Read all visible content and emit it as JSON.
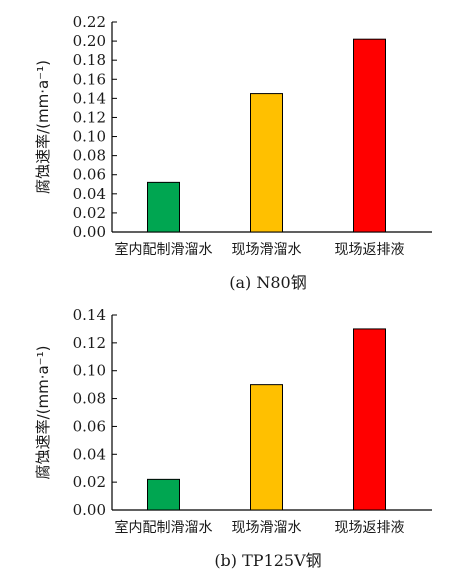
{
  "chart_data": [
    {
      "type": "bar",
      "caption": "(a) N80钢",
      "ylabel": "腐蚀速率/(mm·a⁻¹)",
      "categories": [
        "室内配制滑溜水",
        "现场滑溜水",
        "现场返排液"
      ],
      "values": [
        0.052,
        0.145,
        0.202
      ],
      "colors": [
        "#00a651",
        "#ffc000",
        "#ff0000"
      ],
      "ylim": [
        0,
        0.22
      ],
      "yticks": [
        "0.00",
        "0.02",
        "0.04",
        "0.06",
        "0.08",
        "0.10",
        "0.12",
        "0.14",
        "0.16",
        "0.18",
        "0.20",
        "0.22"
      ],
      "grid": false
    },
    {
      "type": "bar",
      "caption": "(b) TP125V钢",
      "ylabel": "腐蚀速率/(mm·a⁻¹)",
      "categories": [
        "室内配制滑溜水",
        "现场滑溜水",
        "现场返排液"
      ],
      "values": [
        0.022,
        0.09,
        0.13
      ],
      "colors": [
        "#00a651",
        "#ffc000",
        "#ff0000"
      ],
      "ylim": [
        0,
        0.14
      ],
      "yticks": [
        "0.00",
        "0.02",
        "0.04",
        "0.06",
        "0.08",
        "0.10",
        "0.12",
        "0.14"
      ],
      "grid": false
    }
  ]
}
